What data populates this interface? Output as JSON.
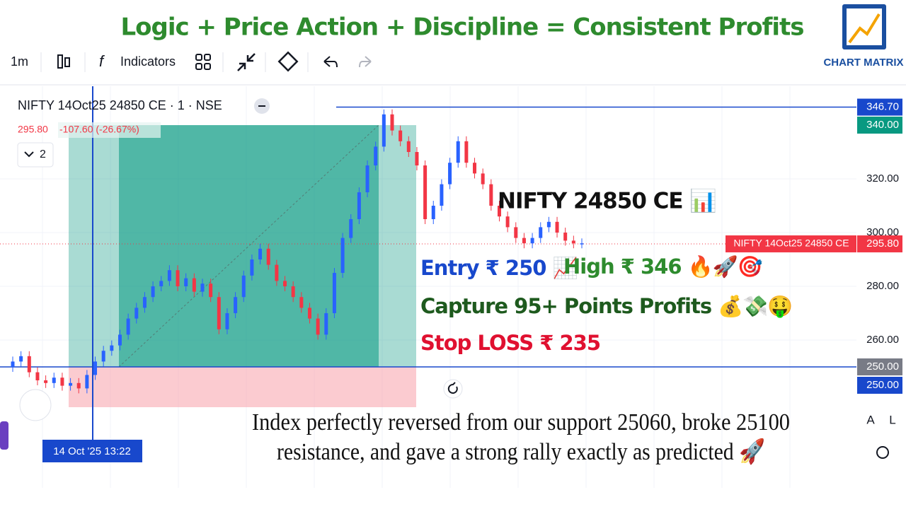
{
  "header": {
    "title": "Logic + Price Action + Discipline = Consistent Profits",
    "logo": "CHART MATRIX"
  },
  "toolbar": {
    "interval": "1m",
    "indicators": "Indicators"
  },
  "legend": {
    "symbol": "NIFTY 14Oct25 24850 CE · 1 · NSE",
    "price": "295.80",
    "change": "-107.60 (-26.67%)",
    "collapse": "2"
  },
  "chart": {
    "closes": [
      252,
      254,
      248,
      245,
      244,
      246,
      243,
      244,
      242,
      247,
      252,
      256,
      258,
      262,
      268,
      272,
      276,
      280,
      282,
      286,
      280,
      283,
      278,
      281,
      276,
      264,
      270,
      276,
      284,
      290,
      294,
      288,
      282,
      280,
      276,
      272,
      268,
      262,
      270,
      285,
      298,
      305,
      315,
      325,
      332,
      344,
      338,
      334,
      330,
      325,
      305,
      310,
      318,
      326,
      334,
      326,
      322,
      318,
      310,
      306,
      302,
      298,
      296,
      298,
      302,
      304,
      300,
      297,
      296,
      296
    ],
    "price_axis": [
      320,
      300,
      280,
      260
    ],
    "price_axis_labels": [
      "320.00",
      "300.00",
      "280.00",
      "260.00"
    ],
    "high": {
      "value": 346.7,
      "label": "346.70"
    },
    "target": {
      "value": 340,
      "label": "340.00"
    },
    "entry": {
      "value": 250,
      "label": "250.00"
    },
    "crosshair": {
      "value": 250,
      "label": "250.00"
    },
    "stop": 235,
    "last_price": {
      "value": 295.8,
      "label": "295.80"
    },
    "last_price_name": "NIFTY 14Oct25 24850 CE",
    "time_label": "14 Oct '25  13:22"
  },
  "annotations": {
    "instrument": "NIFTY 24850 CE 📊",
    "entry": "Entry ₹ 250 📈",
    "high": "High ₹ 346 🔥🚀🎯",
    "capture": "Capture 95+ Points Profits 💰💸🤑",
    "stop": "Stop LOSS ₹ 235",
    "caption": [
      "Index perfectly reversed from our support 25060, broke 25100",
      "resistance, and gave a strong rally exactly as predicted 🚀"
    ]
  },
  "scale_buttons": [
    "A",
    "L"
  ]
}
